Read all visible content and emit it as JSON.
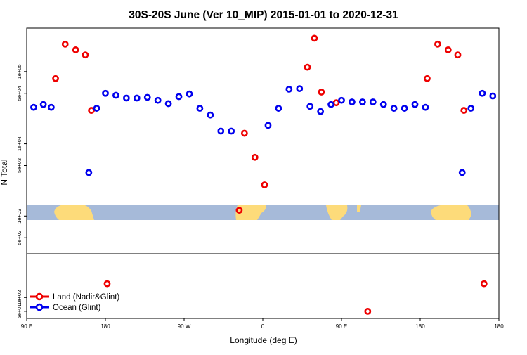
{
  "chart_data": {
    "type": "scatter",
    "title": "30S-20S June (Ver 10_MIP)   2015-01-01 to 2020-12-31",
    "xlabel": "Longitude (deg E)",
    "ylabel": "N Total",
    "x_axis": {
      "range_deg_from_90E": [
        0,
        540
      ],
      "ticks": [
        {
          "pos": 0,
          "label": "90 E"
        },
        {
          "pos": 90,
          "label": "180"
        },
        {
          "pos": 180,
          "label": "90 W"
        },
        {
          "pos": 270,
          "label": "0"
        },
        {
          "pos": 360,
          "label": "90 E"
        },
        {
          "pos": 450,
          "label": "180"
        }
      ]
    },
    "y_axis": {
      "scale": "log",
      "upper_panel": {
        "ylim": [
          300,
          400000
        ],
        "ticks": [
          {
            "value": 500,
            "label": "5e+02"
          },
          {
            "value": 1000,
            "label": "1e+03"
          },
          {
            "value": 5000,
            "label": "5e+03"
          },
          {
            "value": 10000,
            "label": "1e+04"
          },
          {
            "value": 50000,
            "label": "5e+04"
          },
          {
            "value": 100000,
            "label": "1e+05"
          }
        ]
      },
      "lower_panel": {
        "ylim": [
          35,
          900
        ],
        "ticks": [
          {
            "value": 50,
            "label": "5e+01"
          },
          {
            "value": 100,
            "label": "1e+02"
          }
        ]
      }
    },
    "legend": {
      "placement": "bottom-left",
      "entries": [
        {
          "label": "Land (Nadir&Glint)",
          "color": "#ee0000"
        },
        {
          "label": "Ocean (Glint)",
          "color": "#0000ee"
        }
      ]
    },
    "series": [
      {
        "name": "Land (Nadir&Glint)",
        "color": "#ee0000",
        "points": [
          {
            "x": 33,
            "y": 80000
          },
          {
            "x": 44,
            "y": 240000
          },
          {
            "x": 56,
            "y": 200000
          },
          {
            "x": 67,
            "y": 170000
          },
          {
            "x": 74,
            "y": 29000
          },
          {
            "x": 243,
            "y": 1200
          },
          {
            "x": 249,
            "y": 14000
          },
          {
            "x": 261,
            "y": 6500
          },
          {
            "x": 272,
            "y": 2700
          },
          {
            "x": 321,
            "y": 115000
          },
          {
            "x": 329,
            "y": 290000
          },
          {
            "x": 337,
            "y": 52000
          },
          {
            "x": 354,
            "y": 37000
          },
          {
            "x": 458,
            "y": 80000
          },
          {
            "x": 470,
            "y": 240000
          },
          {
            "x": 482,
            "y": 200000
          },
          {
            "x": 493,
            "y": 170000
          },
          {
            "x": 500,
            "y": 29000
          }
        ]
      },
      {
        "name": "Ocean (Glint)",
        "color": "#0000ee",
        "points": [
          {
            "x": 8,
            "y": 32000
          },
          {
            "x": 19,
            "y": 35000
          },
          {
            "x": 28,
            "y": 32000
          },
          {
            "x": 71,
            "y": 4000
          },
          {
            "x": 80,
            "y": 31000
          },
          {
            "x": 90,
            "y": 50000
          },
          {
            "x": 102,
            "y": 47000
          },
          {
            "x": 114,
            "y": 43000
          },
          {
            "x": 126,
            "y": 43000
          },
          {
            "x": 138,
            "y": 44000
          },
          {
            "x": 150,
            "y": 40000
          },
          {
            "x": 162,
            "y": 36000
          },
          {
            "x": 174,
            "y": 45000
          },
          {
            "x": 186,
            "y": 49000
          },
          {
            "x": 198,
            "y": 31000
          },
          {
            "x": 210,
            "y": 25000
          },
          {
            "x": 222,
            "y": 15000
          },
          {
            "x": 234,
            "y": 15000
          },
          {
            "x": 276,
            "y": 18000
          },
          {
            "x": 288,
            "y": 31000
          },
          {
            "x": 300,
            "y": 57000
          },
          {
            "x": 312,
            "y": 58000
          },
          {
            "x": 324,
            "y": 33000
          },
          {
            "x": 336,
            "y": 28000
          },
          {
            "x": 348,
            "y": 35000
          },
          {
            "x": 360,
            "y": 40000
          },
          {
            "x": 372,
            "y": 38000
          },
          {
            "x": 384,
            "y": 38000
          },
          {
            "x": 396,
            "y": 38000
          },
          {
            "x": 408,
            "y": 35000
          },
          {
            "x": 420,
            "y": 31000
          },
          {
            "x": 432,
            "y": 31000
          },
          {
            "x": 444,
            "y": 35000
          },
          {
            "x": 456,
            "y": 32000
          },
          {
            "x": 498,
            "y": 4000
          },
          {
            "x": 508,
            "y": 31000
          },
          {
            "x": 521,
            "y": 50000
          },
          {
            "x": 533,
            "y": 46000
          }
        ]
      }
    ],
    "lower_points": [
      {
        "series": "Land (Nadir&Glint)",
        "x": 92,
        "y": 200
      },
      {
        "series": "Land (Nadir&Glint)",
        "x": 390,
        "y": 50
      },
      {
        "series": "Land (Nadir&Glint)",
        "x": 523,
        "y": 200
      }
    ]
  }
}
